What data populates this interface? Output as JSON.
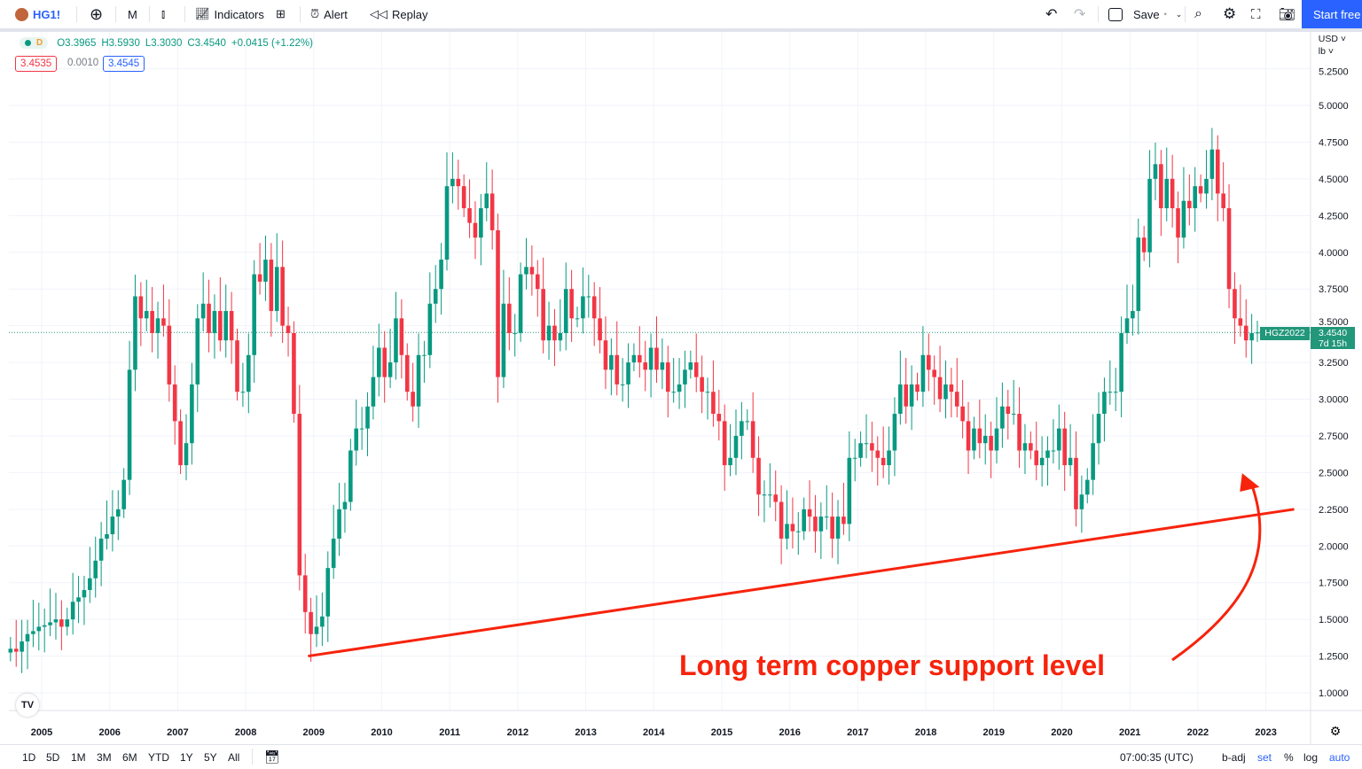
{
  "toolbar": {
    "symbol": "HG1!",
    "interval": "M",
    "indicators": "Indicators",
    "alert": "Alert",
    "replay": "Replay",
    "save": "Save",
    "start": "Start free"
  },
  "legend": {
    "timeframe": "D",
    "open": "O3.3965",
    "high": "H3.5930",
    "low": "L3.3030",
    "close": "C3.4540",
    "change": "+0.0415 (+1.22%)",
    "bid": "3.4535",
    "spread": "0.0010",
    "ask": "3.4545"
  },
  "axis": {
    "currency": "USD",
    "unit": "lb"
  },
  "price_tag": {
    "symbol": "HGZ2022",
    "price": "3.4540",
    "countdown": "7d 15h"
  },
  "annotation": {
    "text": "Long term copper support level",
    "color": "#f7230c"
  },
  "bottom": {
    "ranges": [
      "1D",
      "5D",
      "1M",
      "3M",
      "6M",
      "YTD",
      "1Y",
      "5Y",
      "All"
    ],
    "time": "07:00:35 (UTC)",
    "badj": "b-adj",
    "set": "set",
    "pct": "%",
    "log": "log",
    "auto": "auto"
  },
  "colors": {
    "up": "#089981",
    "down": "#f23645",
    "accent": "#2962ff"
  },
  "chart_data": {
    "type": "candlestick",
    "interval": "monthly",
    "start_month": "2004-07",
    "x_tick_labels": [
      "2005",
      "2006",
      "2007",
      "2008",
      "2009",
      "2010",
      "2011",
      "2012",
      "2013",
      "2014",
      "2015",
      "2016",
      "2017",
      "2018",
      "2019",
      "2020",
      "2021",
      "2022",
      "2023"
    ],
    "y_tick_labels": [
      "5.2500",
      "5.0000",
      "4.7500",
      "4.5000",
      "4.2500",
      "4.0000",
      "3.7500",
      "3.5000",
      "3.2500",
      "3.0000",
      "2.7500",
      "2.5000",
      "2.2500",
      "2.0000",
      "1.7500",
      "1.5000",
      "1.2500",
      "1.0000"
    ],
    "ylim": [
      0.85,
      5.3
    ],
    "grid": true,
    "last_price": 3.454,
    "support_line": {
      "from": [
        "2008-12",
        1.25
      ],
      "to": [
        "2023-06",
        2.25
      ]
    },
    "closes": [
      1.3,
      1.28,
      1.35,
      1.4,
      1.42,
      1.45,
      1.46,
      1.48,
      1.5,
      1.45,
      1.5,
      1.62,
      1.65,
      1.7,
      1.78,
      1.9,
      2.05,
      2.08,
      2.2,
      2.25,
      2.45,
      3.2,
      3.7,
      3.55,
      3.6,
      3.45,
      3.55,
      3.5,
      3.1,
      2.85,
      2.55,
      2.7,
      3.1,
      3.55,
      3.65,
      3.45,
      3.6,
      3.4,
      3.6,
      3.4,
      3.05,
      3.05,
      3.3,
      3.85,
      3.8,
      3.95,
      3.6,
      3.9,
      3.5,
      3.45,
      2.9,
      1.8,
      1.55,
      1.4,
      1.45,
      1.52,
      1.85,
      2.05,
      2.25,
      2.3,
      2.65,
      2.8,
      2.8,
      2.95,
      3.15,
      3.35,
      3.15,
      3.25,
      3.55,
      3.3,
      3.05,
      2.95,
      3.3,
      3.3,
      3.65,
      3.75,
      3.95,
      4.45,
      4.5,
      4.45,
      4.3,
      4.2,
      4.1,
      4.3,
      4.4,
      4.15,
      3.15,
      3.65,
      3.45,
      3.45,
      3.85,
      3.9,
      3.85,
      3.75,
      3.4,
      3.5,
      3.4,
      3.45,
      3.75,
      3.55,
      3.55,
      3.7,
      3.7,
      3.55,
      3.4,
      3.2,
      3.3,
      3.1,
      3.1,
      3.25,
      3.3,
      3.25,
      3.2,
      3.35,
      3.2,
      3.25,
      3.05,
      3.05,
      3.1,
      3.2,
      3.25,
      3.15,
      3.05,
      3.05,
      2.9,
      2.85,
      2.55,
      2.6,
      2.75,
      2.85,
      2.85,
      2.6,
      2.35,
      2.35,
      2.35,
      2.3,
      2.05,
      2.15,
      2.1,
      2.1,
      2.25,
      2.2,
      2.1,
      2.2,
      2.2,
      2.05,
      2.2,
      2.15,
      2.6,
      2.6,
      2.7,
      2.7,
      2.65,
      2.6,
      2.55,
      2.65,
      2.9,
      3.1,
      2.95,
      3.1,
      3.05,
      3.3,
      3.2,
      3.15,
      3.0,
      3.1,
      3.05,
      2.95,
      2.85,
      2.65,
      2.8,
      2.7,
      2.75,
      2.65,
      2.8,
      2.95,
      2.9,
      2.9,
      2.65,
      2.7,
      2.65,
      2.55,
      2.6,
      2.65,
      2.65,
      2.8,
      2.55,
      2.6,
      2.25,
      2.35,
      2.45,
      2.7,
      2.9,
      3.05,
      3.05,
      3.05,
      3.45,
      3.55,
      3.6,
      4.1,
      4.0,
      4.5,
      4.6,
      4.3,
      4.5,
      4.3,
      4.1,
      4.35,
      4.3,
      4.45,
      4.4,
      4.5,
      4.7,
      4.4,
      4.3,
      3.75,
      3.55,
      3.5,
      3.4,
      3.45,
      3.454
    ]
  }
}
